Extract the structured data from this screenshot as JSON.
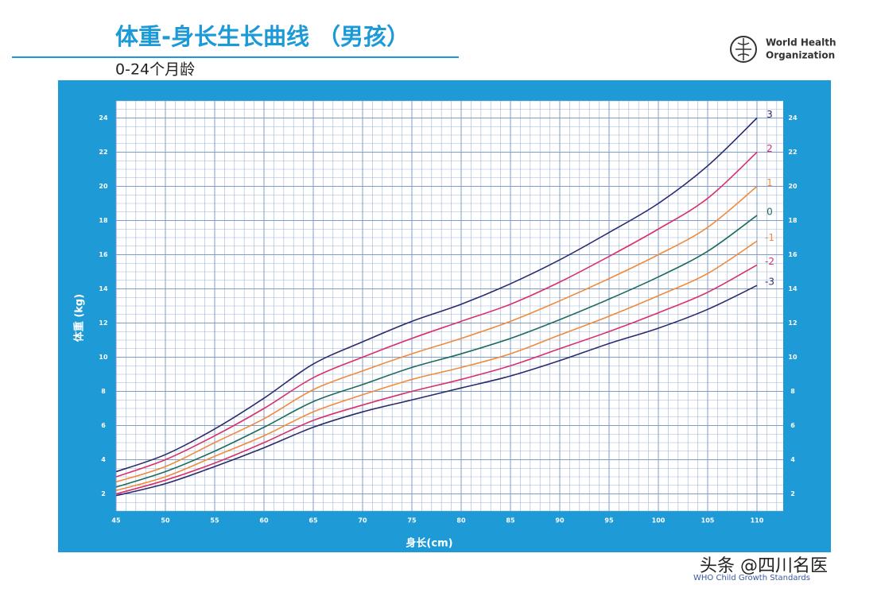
{
  "header": {
    "title": "体重-身长生长曲线 （男孩）",
    "subtitle": "0-24个月龄",
    "logo_line1": "World Health",
    "logo_line2": "Organization"
  },
  "footer": {
    "standards": "WHO Child Growth Standards",
    "watermark": "头条 @四川名医"
  },
  "chart_data": {
    "type": "line",
    "x_label": "身长(cm)",
    "y_label": "体重 (kg)",
    "x": [
      45,
      50,
      55,
      60,
      65,
      70,
      75,
      80,
      85,
      90,
      95,
      100,
      105,
      110
    ],
    "xlim": [
      45,
      110
    ],
    "xticks": [
      45,
      50,
      55,
      60,
      65,
      70,
      75,
      80,
      85,
      90,
      95,
      100,
      105,
      110
    ],
    "ylim": [
      1,
      25
    ],
    "yticks": [
      2,
      4,
      6,
      8,
      10,
      12,
      14,
      16,
      18,
      20,
      22,
      24
    ],
    "grid": true,
    "series": [
      {
        "name": "3",
        "color": "#2b2a6e",
        "values": [
          3.3,
          4.3,
          5.8,
          7.6,
          9.6,
          10.9,
          12.1,
          13.1,
          14.3,
          15.7,
          17.3,
          19.0,
          21.2,
          24.0
        ]
      },
      {
        "name": "2",
        "color": "#d8306c",
        "values": [
          3.0,
          4.0,
          5.4,
          7.0,
          8.8,
          10.0,
          11.1,
          12.1,
          13.1,
          14.4,
          15.9,
          17.5,
          19.3,
          22.0
        ]
      },
      {
        "name": "1",
        "color": "#f08a3c",
        "values": [
          2.7,
          3.6,
          5.0,
          6.4,
          8.1,
          9.2,
          10.2,
          11.1,
          12.1,
          13.3,
          14.6,
          16.0,
          17.6,
          20.0
        ]
      },
      {
        "name": "0",
        "color": "#1e6b5e",
        "values": [
          2.4,
          3.3,
          4.5,
          5.9,
          7.4,
          8.4,
          9.4,
          10.2,
          11.1,
          12.2,
          13.4,
          14.7,
          16.2,
          18.3
        ]
      },
      {
        "name": "-1",
        "color": "#f08a3c",
        "values": [
          2.2,
          3.0,
          4.2,
          5.4,
          6.8,
          7.8,
          8.7,
          9.4,
          10.2,
          11.3,
          12.4,
          13.6,
          14.9,
          16.8
        ]
      },
      {
        "name": "-2",
        "color": "#d8306c",
        "values": [
          2.0,
          2.8,
          3.8,
          5.0,
          6.3,
          7.2,
          8.0,
          8.7,
          9.5,
          10.5,
          11.5,
          12.6,
          13.8,
          15.4
        ]
      },
      {
        "name": "-3",
        "color": "#2b2a6e",
        "values": [
          1.9,
          2.6,
          3.6,
          4.7,
          5.9,
          6.8,
          7.5,
          8.2,
          8.9,
          9.8,
          10.8,
          11.7,
          12.8,
          14.2
        ]
      }
    ]
  }
}
